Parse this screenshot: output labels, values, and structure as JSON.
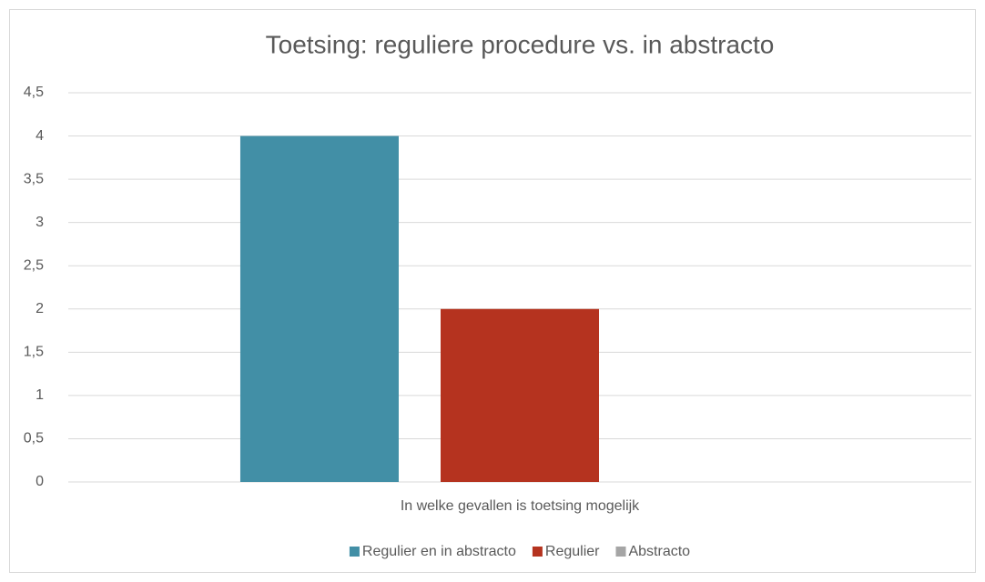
{
  "chart_data": {
    "type": "bar",
    "title": "Toetsing: reguliere procedure vs. in abstracto",
    "categories": [
      "In welke gevallen is toetsing mogelijk"
    ],
    "series": [
      {
        "name": "Regulier en in abstracto",
        "color": "#428fa6",
        "values": [
          4
        ]
      },
      {
        "name": "Regulier",
        "color": "#b5331f",
        "values": [
          2
        ]
      },
      {
        "name": "Abstracto",
        "color": "#a5a5a5",
        "values": [
          0
        ]
      }
    ],
    "ylim": [
      0,
      4.5
    ],
    "yticks": [
      0,
      {
        "value": 0.5,
        "label": "0,5"
      },
      1,
      {
        "value": 1.5,
        "label": "1,5"
      },
      2,
      {
        "value": 2.5,
        "label": "2,5"
      },
      3,
      {
        "value": 3.5,
        "label": "3,5"
      },
      4,
      {
        "value": 4.5,
        "label": "4,5"
      }
    ],
    "grid": true,
    "legend": "bottom"
  }
}
